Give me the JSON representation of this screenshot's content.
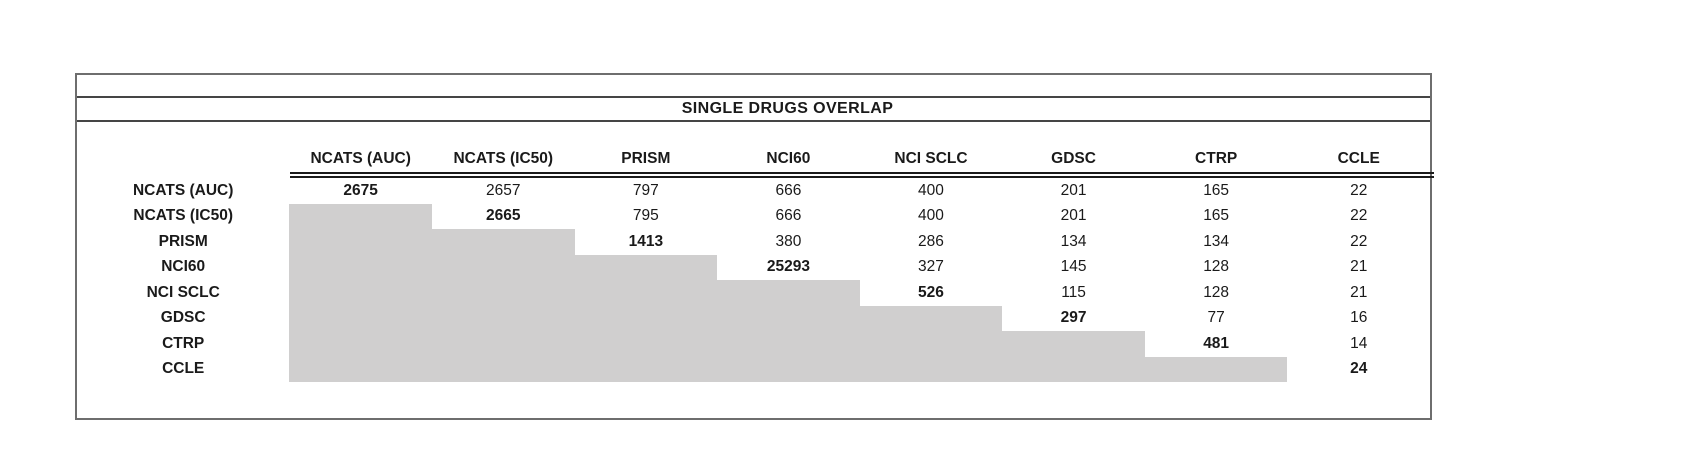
{
  "chart_data": {
    "type": "table",
    "title": "SINGLE DRUGS OVERLAP",
    "columns": [
      "NCATS (AUC)",
      "NCATS (IC50)",
      "PRISM",
      "NCI60",
      "NCI SCLC",
      "GDSC",
      "CTRP",
      "CCLE"
    ],
    "rows": [
      {
        "label": "NCATS (AUC)",
        "values": [
          2675,
          2657,
          797,
          666,
          400,
          201,
          165,
          22
        ]
      },
      {
        "label": "NCATS (IC50)",
        "values": [
          null,
          2665,
          795,
          666,
          400,
          201,
          165,
          22
        ]
      },
      {
        "label": "PRISM",
        "values": [
          null,
          null,
          1413,
          380,
          286,
          134,
          134,
          22
        ]
      },
      {
        "label": "NCI60",
        "values": [
          null,
          null,
          null,
          25293,
          327,
          145,
          128,
          21
        ]
      },
      {
        "label": "NCI SCLC",
        "values": [
          null,
          null,
          null,
          null,
          526,
          115,
          128,
          21
        ]
      },
      {
        "label": "GDSC",
        "values": [
          null,
          null,
          null,
          null,
          null,
          297,
          77,
          16
        ]
      },
      {
        "label": "CTRP",
        "values": [
          null,
          null,
          null,
          null,
          null,
          null,
          481,
          14
        ]
      },
      {
        "label": "CCLE",
        "values": [
          null,
          null,
          null,
          null,
          null,
          null,
          null,
          24
        ]
      }
    ],
    "layout_hints": {
      "diagonal_values_bold": true,
      "lower_triangle_shaded": true,
      "header_double_underline": true
    }
  },
  "colors": {
    "shaded_cell": "#d0cfcf",
    "outer_border": "#6e6e6e",
    "inner_rule": "#454545",
    "double_rule": "#1a1a1a",
    "text": "#1a1a1a"
  }
}
